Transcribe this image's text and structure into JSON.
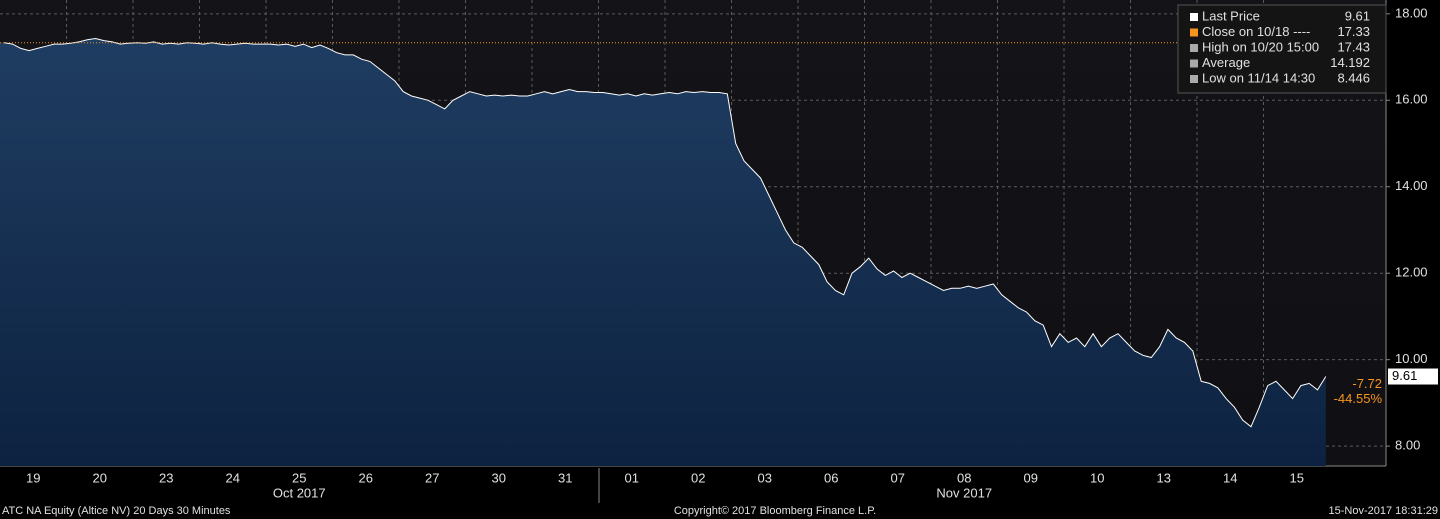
{
  "chart_data": {
    "type": "area",
    "categories": [
      "19",
      "20",
      "23",
      "24",
      "25",
      "26",
      "27",
      "30",
      "31",
      "01",
      "02",
      "03",
      "06",
      "07",
      "08",
      "09",
      "10",
      "13",
      "14",
      "15"
    ],
    "months": [
      {
        "label": "Oct 2017",
        "from": 0,
        "to": 8
      },
      {
        "label": "Nov 2017",
        "from": 9,
        "to": 19
      }
    ],
    "series": [
      {
        "name": "Last Price",
        "color": "#ffffff",
        "values": [
          [
            17.33,
            17.3,
            17.2,
            17.15,
            17.2,
            17.25,
            17.3,
            17.3
          ],
          [
            17.32,
            17.35,
            17.4,
            17.43,
            17.38,
            17.35,
            17.3,
            17.32
          ],
          [
            17.33,
            17.32,
            17.35,
            17.3,
            17.32,
            17.3,
            17.33,
            17.32
          ],
          [
            17.3,
            17.33,
            17.3,
            17.28,
            17.3,
            17.32,
            17.3,
            17.3
          ],
          [
            17.3,
            17.28,
            17.3,
            17.25,
            17.3,
            17.22,
            17.28,
            17.2
          ],
          [
            17.1,
            17.05,
            17.05,
            16.95,
            16.9,
            16.75,
            16.6,
            16.45
          ],
          [
            16.2,
            16.1,
            16.05,
            16.0,
            15.9,
            15.8,
            16.0,
            16.1
          ],
          [
            16.2,
            16.15,
            16.1,
            16.12,
            16.1,
            16.12,
            16.1,
            16.1
          ],
          [
            16.15,
            16.2,
            16.15,
            16.2,
            16.25,
            16.2,
            16.2,
            16.18
          ],
          [
            16.18,
            16.15,
            16.12,
            16.15,
            16.1,
            16.15,
            16.12,
            16.15
          ],
          [
            16.18,
            16.15,
            16.2,
            16.18,
            16.2,
            16.18,
            16.18,
            16.15
          ],
          [
            15.0,
            14.6,
            14.4,
            14.2,
            13.8,
            13.4,
            13.0,
            12.7
          ],
          [
            12.6,
            12.4,
            12.2,
            11.8,
            11.6,
            11.5,
            12.0,
            12.15
          ],
          [
            12.35,
            12.1,
            11.95,
            12.05,
            11.9,
            12.0,
            11.9,
            11.8
          ],
          [
            11.7,
            11.6,
            11.65,
            11.65,
            11.7,
            11.65,
            11.7,
            11.75
          ],
          [
            11.5,
            11.35,
            11.2,
            11.1,
            10.9,
            10.8,
            10.3,
            10.6
          ],
          [
            10.4,
            10.5,
            10.3,
            10.6,
            10.3,
            10.5,
            10.6,
            10.4
          ],
          [
            10.2,
            10.1,
            10.05,
            10.3,
            10.7,
            10.5,
            10.4,
            10.2
          ],
          [
            9.5,
            9.45,
            9.35,
            9.1,
            8.9,
            8.6,
            8.45,
            8.9
          ],
          [
            9.4,
            9.5,
            9.3,
            9.1,
            9.4,
            9.45,
            9.3,
            9.61
          ]
        ]
      }
    ],
    "ylim": [
      7.54,
      18.32
    ],
    "yticks": [
      {
        "value": 8,
        "label": "8.00"
      },
      {
        "value": 10,
        "label": "10.00"
      },
      {
        "value": 12,
        "label": "12.00"
      },
      {
        "value": 14,
        "label": "14.00"
      },
      {
        "value": 16,
        "label": "16.00"
      },
      {
        "value": 18,
        "label": "18.00"
      }
    ],
    "grid": true,
    "legend": [
      {
        "label": "Last Price",
        "value": 9.61,
        "color": "#ffffff"
      },
      {
        "label": "Close on 10/18 ----",
        "value": 17.33,
        "color": "#f7941d"
      },
      {
        "label": "High on 10/20 15:00",
        "value": 17.43,
        "color": "#aaaaaa"
      },
      {
        "label": "Average",
        "value": 14.192,
        "color": "#aaaaaa"
      },
      {
        "label": "Low on 11/14 14:30",
        "value": 8.446,
        "color": "#aaaaaa"
      }
    ],
    "annotations": [
      "-7.72",
      "-44.55%"
    ],
    "footer": {
      "left": "ATC NA Equity (Altice NV) 20 Days 30 Minutes",
      "center": "Copyright© 2017 Bloomberg Finance L.P.",
      "right": "15-Nov-2017 18:31:29"
    }
  }
}
